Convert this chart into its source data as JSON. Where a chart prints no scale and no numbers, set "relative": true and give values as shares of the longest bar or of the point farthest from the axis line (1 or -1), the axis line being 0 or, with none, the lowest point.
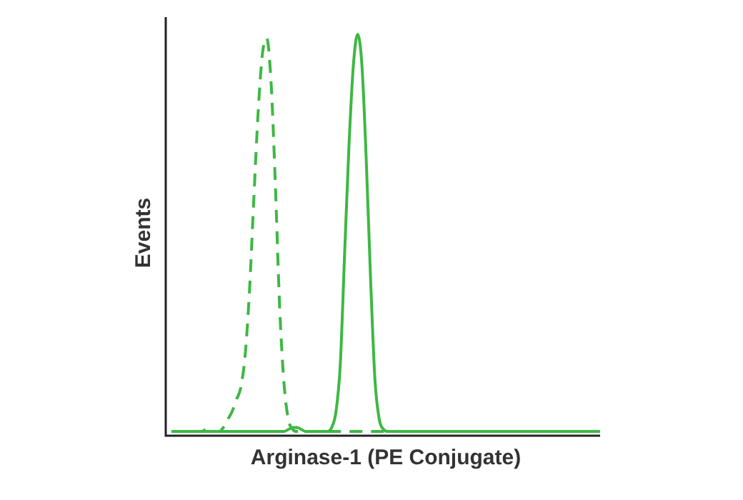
{
  "chart_data": {
    "type": "line",
    "relative": true,
    "xlabel": "Arginase-1 (PE Conjugate)",
    "ylabel": "Events",
    "legend": false,
    "grid": false,
    "marker": "none",
    "categories": [
      null,
      null,
      null,
      null,
      null,
      null,
      null,
      null,
      null,
      null,
      null,
      null,
      null,
      null,
      null,
      null,
      null,
      null,
      null,
      null,
      null,
      null,
      null,
      null,
      null,
      null,
      null,
      null,
      null,
      null,
      null,
      null,
      null,
      null,
      null,
      null,
      null,
      null,
      null,
      null,
      null,
      null,
      null,
      null,
      null,
      null,
      null,
      null,
      null,
      null,
      null,
      null,
      null,
      null,
      null,
      null,
      null,
      null,
      null,
      null,
      null,
      null,
      null,
      null,
      null,
      null,
      null,
      null,
      null,
      null,
      null,
      null,
      null,
      null,
      null,
      null,
      null,
      null,
      null,
      null,
      null,
      null,
      null,
      null,
      null,
      null,
      null,
      null,
      null,
      null,
      null,
      null,
      null,
      null,
      null,
      null,
      null,
      null,
      null,
      null
    ],
    "series": [
      {
        "color": "#3db843",
        "line_style": "dashed",
        "values": [
          0,
          0,
          0,
          0,
          0,
          0,
          0,
          0,
          0.005,
          0,
          0,
          0,
          0.01,
          0.03,
          0.05,
          0.08,
          0.11,
          0.19,
          0.35,
          0.58,
          0.8,
          0.95,
          0.99,
          0.88,
          0.62,
          0.31,
          0.12,
          0.03,
          0.005,
          0,
          0,
          0,
          0,
          0,
          0,
          0,
          0,
          0,
          0,
          0,
          0,
          0,
          0,
          0,
          0,
          0,
          0,
          0,
          0,
          0,
          0,
          0,
          0,
          0,
          0,
          0,
          0,
          0,
          0,
          0,
          0,
          0,
          0,
          0,
          0,
          0,
          0,
          0,
          0,
          0,
          0,
          0,
          0,
          0,
          0,
          0,
          0,
          0,
          0,
          0,
          0,
          0,
          0,
          0,
          0,
          0,
          0,
          0,
          0,
          0,
          0,
          0,
          0,
          0,
          0,
          0,
          0,
          0,
          0,
          0
        ]
      },
      {
        "color": "#3db843",
        "line_style": "solid",
        "values": [
          0,
          0,
          0,
          0,
          0,
          0,
          0,
          0,
          0,
          0,
          0,
          0,
          0,
          0,
          0,
          0,
          0,
          0,
          0,
          0,
          0,
          0,
          0,
          0,
          0,
          0,
          0,
          0.005,
          0.01,
          0.01,
          0.005,
          0,
          0,
          0,
          0,
          0,
          0,
          0.01,
          0.05,
          0.17,
          0.45,
          0.72,
          0.92,
          1,
          0.92,
          0.68,
          0.38,
          0.13,
          0.03,
          0.005,
          0,
          0,
          0,
          0,
          0,
          0,
          0,
          0,
          0,
          0,
          0,
          0,
          0,
          0,
          0,
          0,
          0,
          0,
          0,
          0,
          0,
          0,
          0,
          0,
          0,
          0,
          0,
          0,
          0,
          0,
          0,
          0,
          0,
          0,
          0,
          0,
          0,
          0,
          0,
          0,
          0,
          0,
          0,
          0,
          0,
          0,
          0,
          0,
          0,
          0
        ]
      }
    ]
  }
}
